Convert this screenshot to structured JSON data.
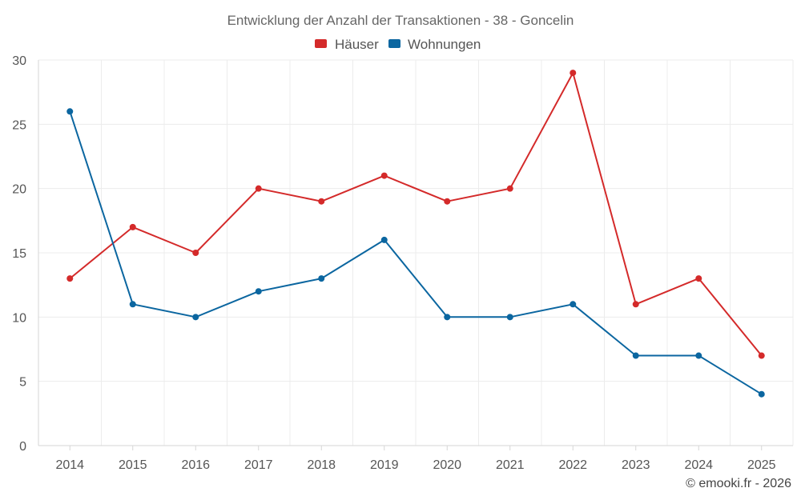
{
  "chart_data": {
    "type": "line",
    "title": "Entwicklung der Anzahl der Transaktionen - 38 - Goncelin",
    "categories": [
      "2014",
      "2015",
      "2016",
      "2017",
      "2018",
      "2019",
      "2020",
      "2021",
      "2022",
      "2023",
      "2024",
      "2025"
    ],
    "series": [
      {
        "name": "Häuser",
        "color": "#d42a2a",
        "values": [
          13,
          17,
          15,
          20,
          19,
          21,
          19,
          20,
          29,
          11,
          13,
          7
        ]
      },
      {
        "name": "Wohnungen",
        "color": "#0b66a0",
        "values": [
          26,
          11,
          10,
          12,
          13,
          16,
          10,
          10,
          11,
          7,
          7,
          4
        ]
      }
    ],
    "ylim": [
      0,
      30
    ],
    "yticks": [
      0,
      5,
      10,
      15,
      20,
      25,
      30
    ],
    "xlabel": "",
    "ylabel": "",
    "grid": true,
    "legend": "top-center"
  },
  "credit": "© emooki.fr - 2026"
}
